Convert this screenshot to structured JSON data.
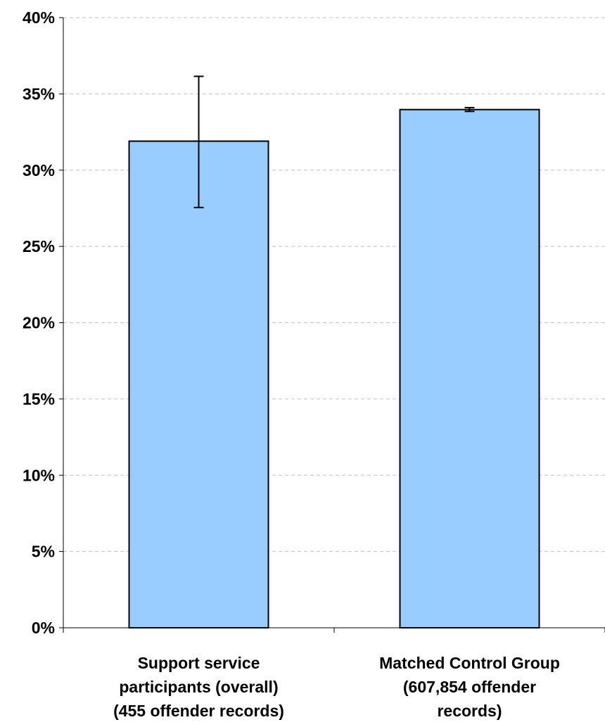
{
  "chart_data": {
    "type": "bar",
    "categories": [
      [
        "Support service",
        "participants (overall)",
        "(455 offender records)"
      ],
      [
        "Matched Control Group",
        "(607,854 offender",
        "records)"
      ]
    ],
    "values": [
      31.9,
      33.97
    ],
    "error_bars": [
      {
        "low": 27.55,
        "high": 36.15
      },
      {
        "low": 33.85,
        "high": 34.1
      }
    ],
    "ylim": [
      0,
      40
    ],
    "yticks": [
      0,
      5,
      10,
      15,
      20,
      25,
      30,
      35,
      40
    ],
    "ytick_format": "{v}%",
    "grid": true,
    "bar_color": "#99ccff",
    "title": "",
    "xlabel": "",
    "ylabel": ""
  }
}
